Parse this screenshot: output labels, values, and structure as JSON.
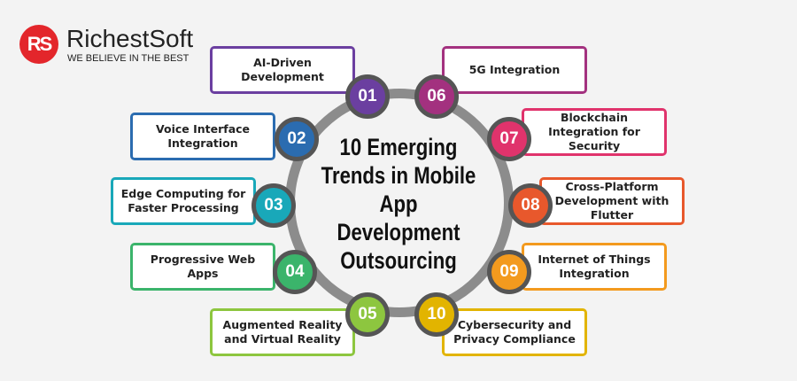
{
  "logo": {
    "mark": "RS",
    "name": "RichestSoft",
    "tagline": "WE BELIEVE IN THE BEST"
  },
  "title": "10 Emerging Trends in Mobile App Development Outsourcing",
  "trends": [
    {
      "num": "01",
      "label": "AI-Driven Development",
      "color": "#6b3fa0"
    },
    {
      "num": "02",
      "label": "Voice Interface Integration",
      "color": "#2b6cb0"
    },
    {
      "num": "03",
      "label": "Edge Computing for Faster Processing",
      "color": "#19a8b9"
    },
    {
      "num": "04",
      "label": "Progressive Web Apps",
      "color": "#3bb46b"
    },
    {
      "num": "05",
      "label": "Augmented Reality and Virtual Reality",
      "color": "#8dc63f"
    },
    {
      "num": "06",
      "label": "5G Integration",
      "color": "#a3317f"
    },
    {
      "num": "07",
      "label": "Blockchain Integration for Security",
      "color": "#e0336c"
    },
    {
      "num": "08",
      "label": "Cross-Platform Development with Flutter",
      "color": "#e8582c"
    },
    {
      "num": "09",
      "label": "Internet of Things Integration",
      "color": "#f39a1e"
    },
    {
      "num": "10",
      "label": "Cybersecurity and Privacy Compliance",
      "color": "#e2b400"
    }
  ]
}
